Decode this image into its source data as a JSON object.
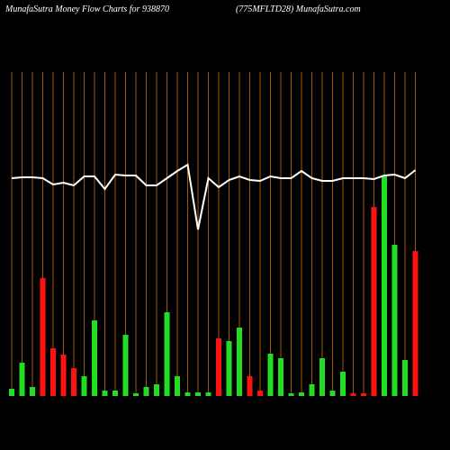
{
  "chart_data": {
    "type": "bar",
    "title": "MunafaSutra  Money Flow  Charts for 938870",
    "subtitle": "(775MFLTD28) MunafaSutra.com",
    "categories": [
      null,
      null,
      null,
      null,
      null,
      null,
      null,
      null,
      null,
      null,
      null,
      null,
      null,
      null,
      null,
      null,
      null,
      null,
      null,
      null,
      null,
      null,
      null,
      null,
      null,
      null,
      null,
      null,
      null,
      null,
      null,
      null,
      null,
      null,
      null,
      null,
      null,
      null,
      null,
      null
    ],
    "values": [
      8,
      37,
      10,
      131,
      53,
      46,
      31,
      22,
      84,
      6,
      6,
      68,
      3,
      10,
      13,
      93,
      22,
      4,
      4,
      4,
      64,
      61,
      76,
      22,
      6,
      47,
      42,
      3,
      4,
      13,
      42,
      6,
      27,
      3,
      3,
      210,
      245,
      168,
      40,
      161
    ],
    "colors": [
      "#22dd22",
      "#22dd22",
      "#22dd22",
      "#ff1111",
      "#ff1111",
      "#ff1111",
      "#ff1111",
      "#22dd22",
      "#22dd22",
      "#22dd22",
      "#22dd22",
      "#22dd22",
      "#22dd22",
      "#22dd22",
      "#22dd22",
      "#22dd22",
      "#22dd22",
      "#22dd22",
      "#22dd22",
      "#22dd22",
      "#ff1111",
      "#22dd22",
      "#22dd22",
      "#ff1111",
      "#ff1111",
      "#22dd22",
      "#22dd22",
      "#22dd22",
      "#22dd22",
      "#22dd22",
      "#22dd22",
      "#22dd22",
      "#22dd22",
      "#ff1111",
      "#ff1111",
      "#ff1111",
      "#22dd22",
      "#22dd22",
      "#22dd22",
      "#ff1111"
    ],
    "line": {
      "color": "#ffffff",
      "values": [
        242,
        243,
        243,
        242,
        235,
        237,
        234,
        244,
        244,
        230,
        246,
        245,
        245,
        234,
        234,
        242,
        250,
        257,
        185,
        242,
        232,
        240,
        244,
        240,
        239,
        244,
        242,
        242,
        250,
        242,
        239,
        239,
        242,
        242,
        242,
        241,
        245,
        246,
        242,
        251
      ]
    },
    "ylim": [
      0,
      360
    ],
    "grid_color": "#a0560a"
  }
}
